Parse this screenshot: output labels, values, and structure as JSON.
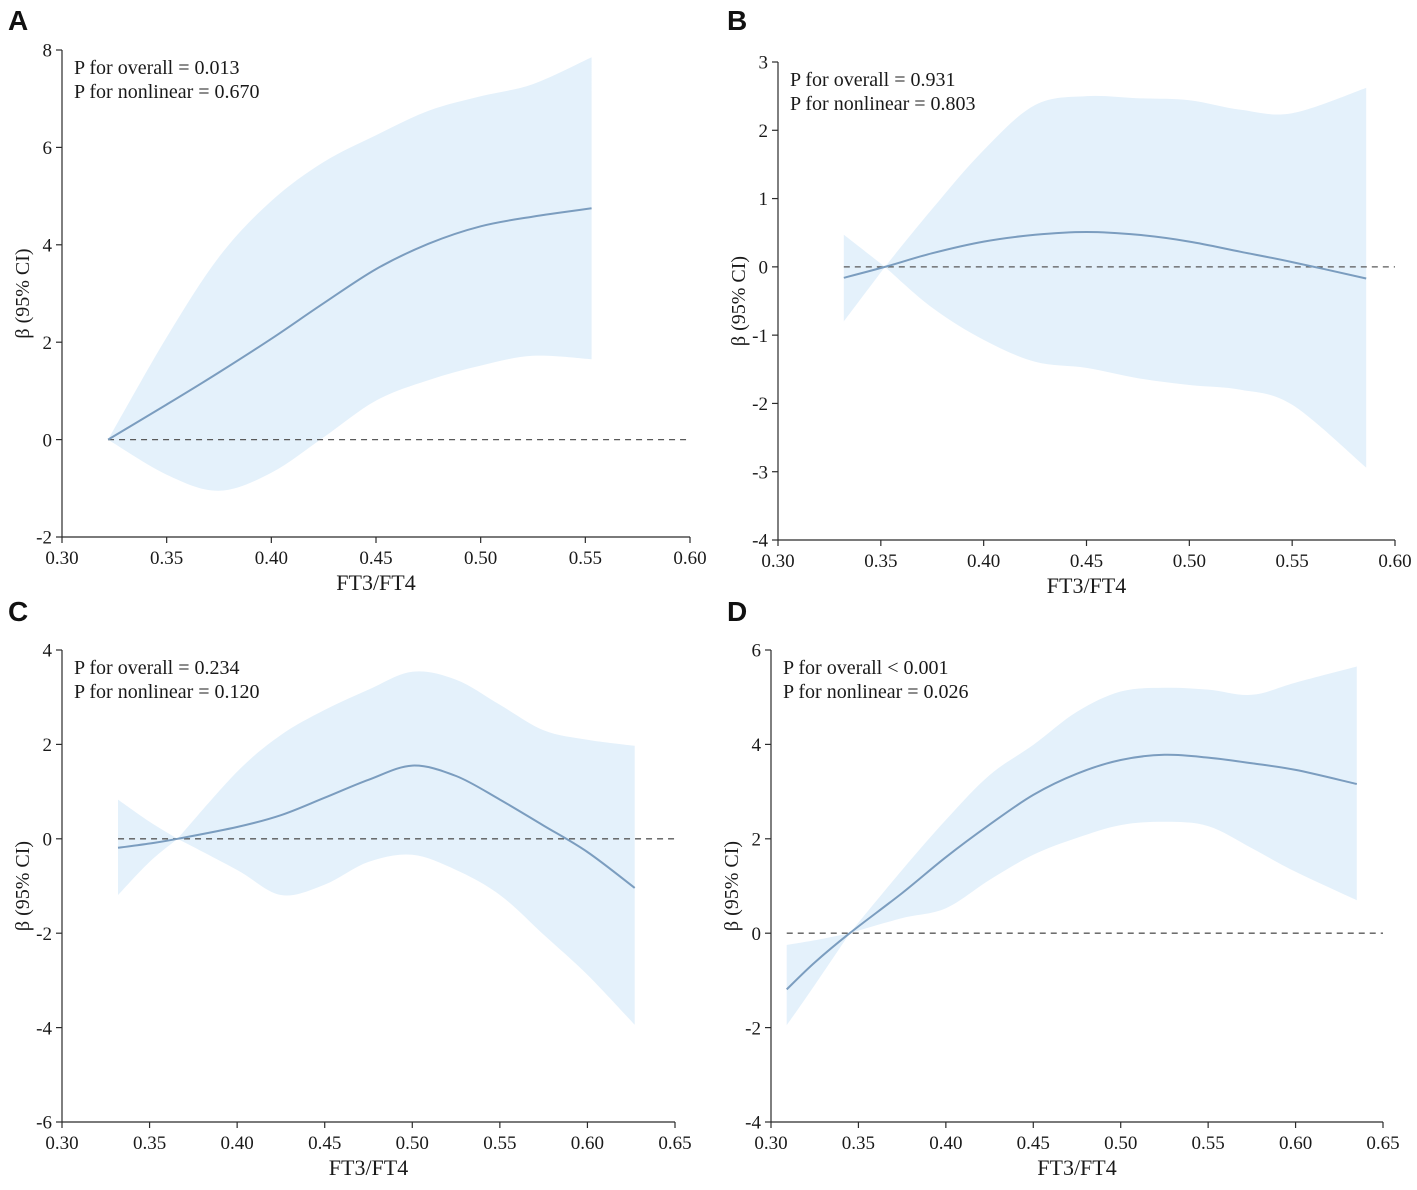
{
  "figure_colors": {
    "band": "#e4f1fb",
    "curve": "#7b9dbf",
    "reference": "#595959",
    "axis": "#2b2b2b"
  },
  "chart_data": [
    {
      "panel_label": "A",
      "type": "line",
      "annotations": [
        "P for overall = 0.013",
        "P for nonlinear = 0.670"
      ],
      "xlabel": "FT3/FT4",
      "ylabel": "β (95% CI)",
      "xlim": [
        0.3,
        0.6
      ],
      "ylim": [
        -2,
        8
      ],
      "xticks": [
        "0.30",
        "0.35",
        "0.40",
        "0.45",
        "0.50",
        "0.55",
        "0.60"
      ],
      "yticks": [
        "-2",
        "0",
        "2",
        "4",
        "6",
        "8"
      ],
      "reference_line_y": 0,
      "grid": false,
      "series": [
        {
          "x": [
            0.322,
            0.35,
            0.375,
            0.4,
            0.425,
            0.45,
            0.475,
            0.5,
            0.525,
            0.553
          ],
          "y": [
            0.0,
            0.72,
            1.38,
            2.07,
            2.8,
            3.5,
            4.02,
            4.38,
            4.58,
            4.75
          ],
          "ci_upper": [
            0.0,
            2.1,
            3.75,
            4.9,
            5.7,
            6.25,
            6.75,
            7.05,
            7.3,
            7.85
          ],
          "ci_lower": [
            0.0,
            -0.72,
            -1.05,
            -0.68,
            0.05,
            0.8,
            1.22,
            1.52,
            1.72,
            1.65
          ]
        }
      ]
    },
    {
      "panel_label": "B",
      "type": "line",
      "annotations": [
        "P for overall = 0.931",
        "P for nonlinear = 0.803"
      ],
      "xlabel": "FT3/FT4",
      "ylabel": "β (95% CI)",
      "xlim": [
        0.3,
        0.6
      ],
      "ylim": [
        -4,
        3
      ],
      "xticks": [
        "0.30",
        "0.35",
        "0.40",
        "0.45",
        "0.50",
        "0.55",
        "0.60"
      ],
      "yticks": [
        "-4",
        "-3",
        "-2",
        "-1",
        "0",
        "1",
        "2",
        "3"
      ],
      "reference_line_y": 0,
      "grid": false,
      "series": [
        {
          "x": [
            0.332,
            0.352,
            0.375,
            0.4,
            0.425,
            0.45,
            0.475,
            0.5,
            0.525,
            0.55,
            0.586
          ],
          "y": [
            -0.16,
            0.0,
            0.2,
            0.37,
            0.47,
            0.51,
            0.47,
            0.37,
            0.22,
            0.07,
            -0.17
          ],
          "ci_upper": [
            0.47,
            0.0,
            0.85,
            1.71,
            2.37,
            2.5,
            2.47,
            2.44,
            2.3,
            2.25,
            2.62
          ],
          "ci_lower": [
            -0.8,
            0.0,
            -0.6,
            -1.07,
            -1.39,
            -1.48,
            -1.63,
            -1.73,
            -1.8,
            -2.02,
            -2.94
          ]
        }
      ]
    },
    {
      "panel_label": "C",
      "type": "line",
      "annotations": [
        "P for overall = 0.234",
        "P for nonlinear = 0.120"
      ],
      "xlabel": "FT3/FT4",
      "ylabel": "β (95% CI)",
      "xlim": [
        0.3,
        0.65
      ],
      "ylim": [
        -6,
        4
      ],
      "xticks": [
        "0.30",
        "0.35",
        "0.40",
        "0.45",
        "0.50",
        "0.55",
        "0.60",
        "0.65"
      ],
      "yticks": [
        "-6",
        "-4",
        "-2",
        "0",
        "2",
        "4"
      ],
      "reference_line_y": 0,
      "grid": false,
      "series": [
        {
          "x": [
            0.332,
            0.35,
            0.366,
            0.4,
            0.425,
            0.45,
            0.475,
            0.5,
            0.525,
            0.55,
            0.575,
            0.6,
            0.627
          ],
          "y": [
            -0.19,
            -0.1,
            0.0,
            0.25,
            0.5,
            0.87,
            1.25,
            1.55,
            1.33,
            0.83,
            0.28,
            -0.28,
            -1.04
          ],
          "ci_upper": [
            0.83,
            0.36,
            0.0,
            1.42,
            2.2,
            2.73,
            3.16,
            3.54,
            3.37,
            2.84,
            2.3,
            2.1,
            1.97
          ],
          "ci_lower": [
            -1.19,
            -0.49,
            0.0,
            -0.66,
            -1.19,
            -0.97,
            -0.49,
            -0.34,
            -0.66,
            -1.19,
            -2.03,
            -2.88,
            -3.94
          ]
        }
      ]
    },
    {
      "panel_label": "D",
      "type": "line",
      "annotations": [
        "P for overall < 0.001",
        "P for nonlinear = 0.026"
      ],
      "xlabel": "FT3/FT4",
      "ylabel": "β (95% CI)",
      "xlim": [
        0.3,
        0.65
      ],
      "ylim": [
        -4,
        6
      ],
      "xticks": [
        "0.30",
        "0.35",
        "0.40",
        "0.45",
        "0.50",
        "0.55",
        "0.60",
        "0.65"
      ],
      "yticks": [
        "-4",
        "-2",
        "0",
        "2",
        "4",
        "6"
      ],
      "reference_line_y": 0,
      "grid": false,
      "series": [
        {
          "x": [
            0.309,
            0.325,
            0.345,
            0.375,
            0.4,
            0.425,
            0.45,
            0.475,
            0.5,
            0.525,
            0.55,
            0.575,
            0.6,
            0.635
          ],
          "y": [
            -1.19,
            -0.62,
            0.0,
            0.85,
            1.61,
            2.3,
            2.93,
            3.38,
            3.67,
            3.78,
            3.72,
            3.6,
            3.46,
            3.16
          ],
          "ci_upper": [
            -0.25,
            -0.15,
            0.0,
            1.34,
            2.4,
            3.35,
            3.99,
            4.69,
            5.12,
            5.2,
            5.16,
            5.05,
            5.31,
            5.65
          ],
          "ci_lower": [
            -1.95,
            -1.1,
            0.0,
            0.32,
            0.53,
            1.13,
            1.66,
            2.02,
            2.29,
            2.36,
            2.27,
            1.8,
            1.3,
            0.7
          ]
        }
      ]
    }
  ]
}
